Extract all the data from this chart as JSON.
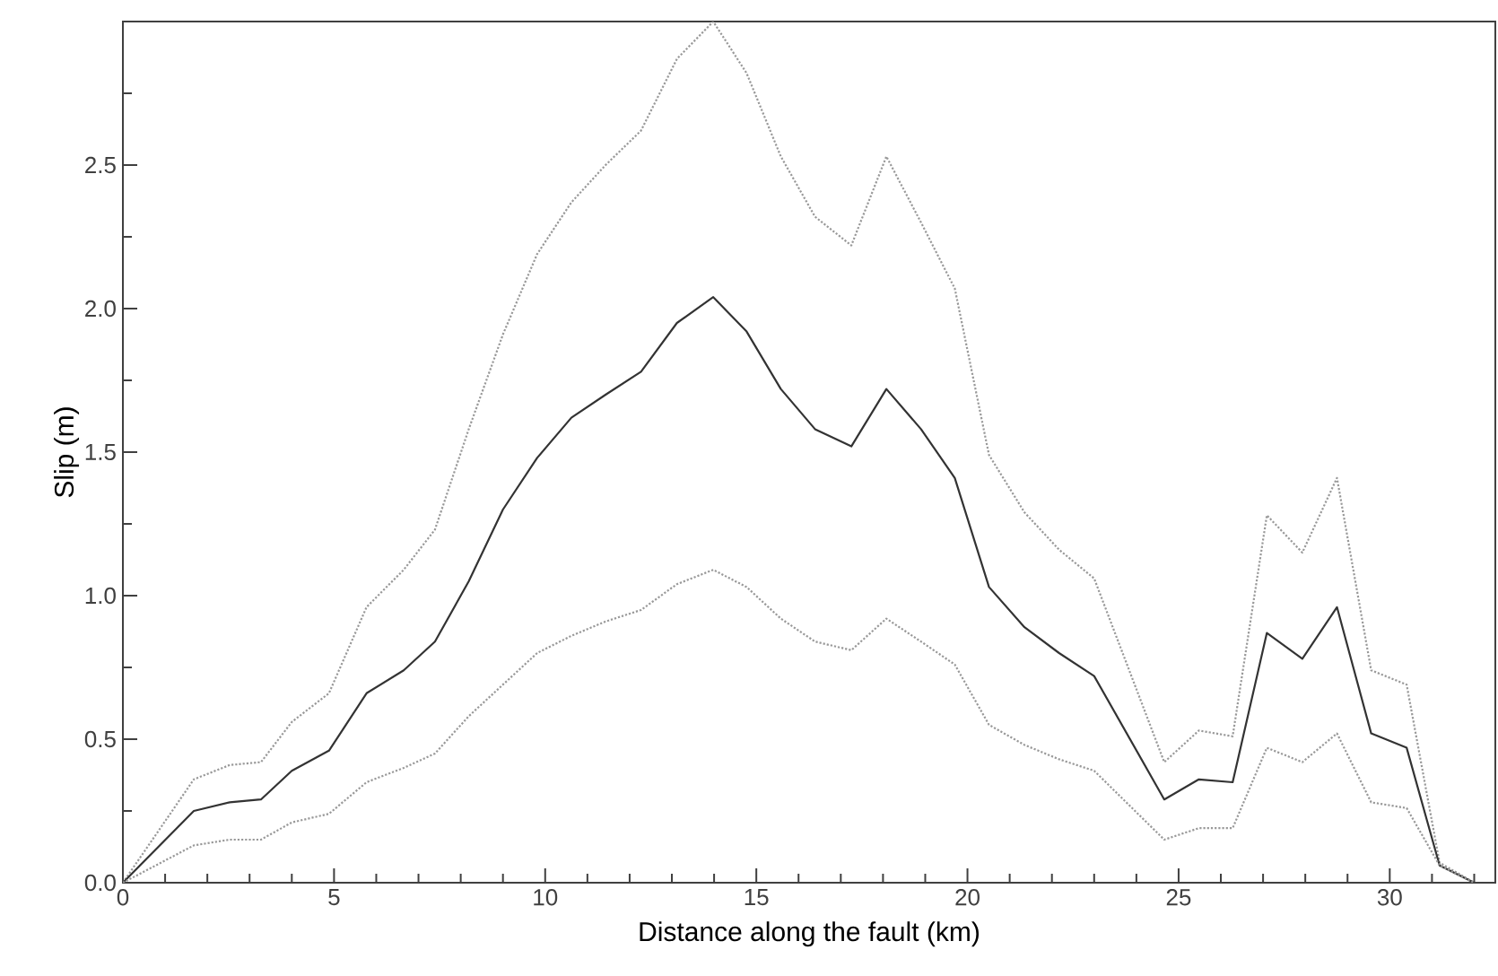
{
  "chart_data": {
    "type": "line",
    "xlabel": "Distance along the fault (km)",
    "ylabel": "Slip (m)",
    "x": [
      0,
      1.68,
      2.53,
      3.27,
      4.0,
      4.88,
      5.77,
      6.65,
      7.39,
      8.19,
      9.0,
      9.81,
      10.62,
      11.43,
      12.27,
      13.12,
      13.98,
      14.77,
      15.58,
      16.39,
      17.25,
      18.08,
      18.9,
      19.7,
      20.51,
      21.35,
      22.17,
      23.0,
      24.66,
      25.48,
      26.28,
      27.09,
      27.93,
      28.75,
      29.56,
      30.4,
      31.18,
      32.0
    ],
    "series": [
      {
        "color": "#999999",
        "line_style": "dotted",
        "values": [
          0,
          0.36,
          0.41,
          0.42,
          0.56,
          0.66,
          0.96,
          1.09,
          1.23,
          1.58,
          1.91,
          2.19,
          2.37,
          2.5,
          2.62,
          2.87,
          3.0,
          2.82,
          2.53,
          2.32,
          2.22,
          2.53,
          2.3,
          2.07,
          1.49,
          1.29,
          1.16,
          1.06,
          0.42,
          0.53,
          0.51,
          1.28,
          1.15,
          1.41,
          0.74,
          0.69,
          0.07,
          0
        ]
      },
      {
        "color": "#333333",
        "line_style": "solid",
        "values": [
          0,
          0.25,
          0.28,
          0.29,
          0.39,
          0.46,
          0.66,
          0.74,
          0.84,
          1.05,
          1.3,
          1.48,
          1.62,
          1.7,
          1.78,
          1.95,
          2.04,
          1.92,
          1.72,
          1.58,
          1.52,
          1.72,
          1.58,
          1.41,
          1.03,
          0.89,
          0.8,
          0.72,
          0.29,
          0.36,
          0.35,
          0.87,
          0.78,
          0.96,
          0.52,
          0.47,
          0.06,
          0
        ]
      },
      {
        "color": "#999999",
        "line_style": "dotted",
        "values": [
          0,
          0.13,
          0.15,
          0.15,
          0.21,
          0.24,
          0.35,
          0.4,
          0.45,
          0.58,
          0.69,
          0.8,
          0.86,
          0.91,
          0.95,
          1.04,
          1.09,
          1.03,
          0.92,
          0.84,
          0.81,
          0.92,
          0.84,
          0.76,
          0.55,
          0.48,
          0.43,
          0.39,
          0.15,
          0.19,
          0.19,
          0.47,
          0.42,
          0.52,
          0.28,
          0.26,
          0.06,
          0
        ]
      }
    ],
    "xlim": [
      0,
      32.5
    ],
    "ylim": [
      0,
      3
    ],
    "xticks": [
      0,
      {
        "value": 1,
        "label": null
      },
      {
        "value": 2,
        "label": null
      },
      {
        "value": 3,
        "label": null
      },
      {
        "value": 4,
        "label": null
      },
      5,
      {
        "value": 6,
        "label": null
      },
      {
        "value": 7,
        "label": null
      },
      {
        "value": 8,
        "label": null
      },
      {
        "value": 9,
        "label": null
      },
      10,
      {
        "value": 11,
        "label": null
      },
      {
        "value": 12,
        "label": null
      },
      {
        "value": 13,
        "label": null
      },
      {
        "value": 14,
        "label": null
      },
      15,
      {
        "value": 16,
        "label": null
      },
      {
        "value": 17,
        "label": null
      },
      {
        "value": 18,
        "label": null
      },
      {
        "value": 19,
        "label": null
      },
      20,
      {
        "value": 21,
        "label": null
      },
      {
        "value": 22,
        "label": null
      },
      {
        "value": 23,
        "label": null
      },
      {
        "value": 24,
        "label": null
      },
      25,
      {
        "value": 26,
        "label": null
      },
      {
        "value": 27,
        "label": null
      },
      {
        "value": 28,
        "label": null
      },
      {
        "value": 29,
        "label": null
      },
      30,
      {
        "value": 31,
        "label": null
      },
      {
        "value": 32,
        "label": null
      }
    ],
    "yticks": [
      {
        "value": 0,
        "label": "0.0"
      },
      {
        "value": 0.25,
        "label": null
      },
      {
        "value": 0.5,
        "label": "0.5"
      },
      {
        "value": 0.75,
        "label": null
      },
      {
        "value": 1,
        "label": "1.0"
      },
      {
        "value": 1.25,
        "label": null
      },
      {
        "value": 1.5,
        "label": "1.5"
      },
      {
        "value": 1.75,
        "label": null
      },
      {
        "value": 2,
        "label": "2.0"
      },
      {
        "value": 2.25,
        "label": null
      },
      {
        "value": 2.5,
        "label": "2.5"
      },
      {
        "value": 2.75,
        "label": null
      }
    ]
  }
}
